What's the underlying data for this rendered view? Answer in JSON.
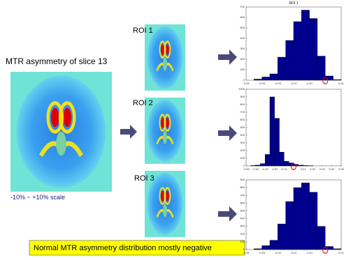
{
  "slide": {
    "main_label": "MTR asymmetry of slice 13",
    "scale_label": "-10% ~ +10% scale",
    "roi_labels": [
      "ROI 1",
      "ROI 2",
      "ROI 3"
    ],
    "conclusion": "Normal MTR asymmetry distribution mostly negative"
  },
  "chart_data": [
    {
      "type": "histogram",
      "title": "ROI 1",
      "color": "#00008f",
      "bins": [
        -0.045,
        -0.04,
        -0.035,
        -0.03,
        -0.025,
        -0.02,
        -0.015,
        -0.01,
        -0.005,
        0,
        0.005,
        0.01
      ],
      "values": [
        10,
        30,
        60,
        220,
        380,
        560,
        670,
        590,
        230,
        40,
        5
      ],
      "xlim": [
        -0.05,
        0.01
      ],
      "xticks": [
        -0.05,
        -0.04,
        -0.03,
        -0.02,
        -0.01,
        0,
        0.01
      ],
      "ylim": [
        0,
        700
      ],
      "yticks": [
        0,
        100,
        200,
        300,
        400,
        500,
        600,
        700
      ]
    },
    {
      "type": "histogram",
      "color": "#00008f",
      "bins": [
        -0.045,
        -0.04,
        -0.035,
        -0.03,
        -0.025,
        -0.02,
        -0.015,
        -0.01,
        -0.005,
        0,
        0.005,
        0.01,
        0.015,
        0.02
      ],
      "values": [
        5,
        10,
        30,
        150,
        900,
        620,
        180,
        60,
        40,
        20,
        10,
        5,
        3
      ],
      "xlim": [
        -0.05,
        0.05
      ],
      "xticks": [
        -0.05,
        -0.04,
        -0.03,
        -0.02,
        -0.01,
        0,
        0.01,
        0.02,
        0.03,
        0.04,
        0.05
      ],
      "ylim": [
        0,
        1000
      ],
      "yticks": [
        0,
        100,
        200,
        300,
        400,
        500,
        600,
        700,
        800,
        900,
        1000
      ]
    },
    {
      "type": "histogram",
      "color": "#00008f",
      "bins": [
        -0.045,
        -0.04,
        -0.035,
        -0.03,
        -0.025,
        -0.02,
        -0.015,
        -0.01,
        -0.005,
        0,
        0.005,
        0.01
      ],
      "values": [
        10,
        50,
        120,
        330,
        620,
        800,
        860,
        740,
        300,
        40,
        10
      ],
      "xlim": [
        -0.05,
        0.01
      ],
      "xticks": [
        -0.05,
        -0.04,
        -0.03,
        -0.02,
        -0.01,
        0,
        0.01
      ],
      "ylim": [
        0,
        900
      ],
      "yticks": [
        0,
        100,
        200,
        300,
        400,
        500,
        600,
        700,
        800,
        900
      ]
    }
  ]
}
